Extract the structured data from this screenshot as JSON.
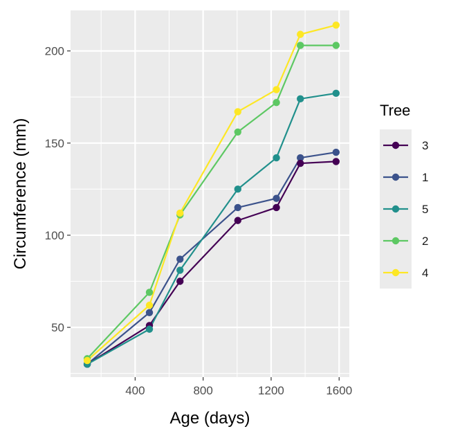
{
  "chart_data": {
    "type": "line",
    "title": "",
    "xlabel": "Age (days)",
    "ylabel": "Circumference (mm)",
    "xlim": [
      20,
      1660
    ],
    "ylim": [
      23,
      222
    ],
    "x_ticks": [
      400,
      800,
      1200,
      1600
    ],
    "y_ticks": [
      50,
      100,
      150,
      200
    ],
    "grid": true,
    "panel_background": "#ebebeb",
    "legend": {
      "title": "Tree",
      "position": "right"
    },
    "x": [
      118,
      484,
      664,
      1004,
      1231,
      1372,
      1582
    ],
    "series": [
      {
        "name": "3",
        "color": "#440154",
        "values": [
          30,
          51,
          75,
          108,
          115,
          139,
          140
        ]
      },
      {
        "name": "1",
        "color": "#3b528b",
        "values": [
          30,
          58,
          87,
          115,
          120,
          142,
          145
        ]
      },
      {
        "name": "5",
        "color": "#21908c",
        "values": [
          30,
          49,
          81,
          125,
          142,
          174,
          177
        ]
      },
      {
        "name": "2",
        "color": "#5dc863",
        "values": [
          33,
          69,
          111,
          156,
          172,
          203,
          203
        ]
      },
      {
        "name": "4",
        "color": "#fde725",
        "values": [
          32,
          62,
          112,
          167,
          179,
          209,
          214
        ]
      }
    ],
    "draw_order": [
      "1",
      "3",
      "5",
      "2",
      "4"
    ]
  }
}
